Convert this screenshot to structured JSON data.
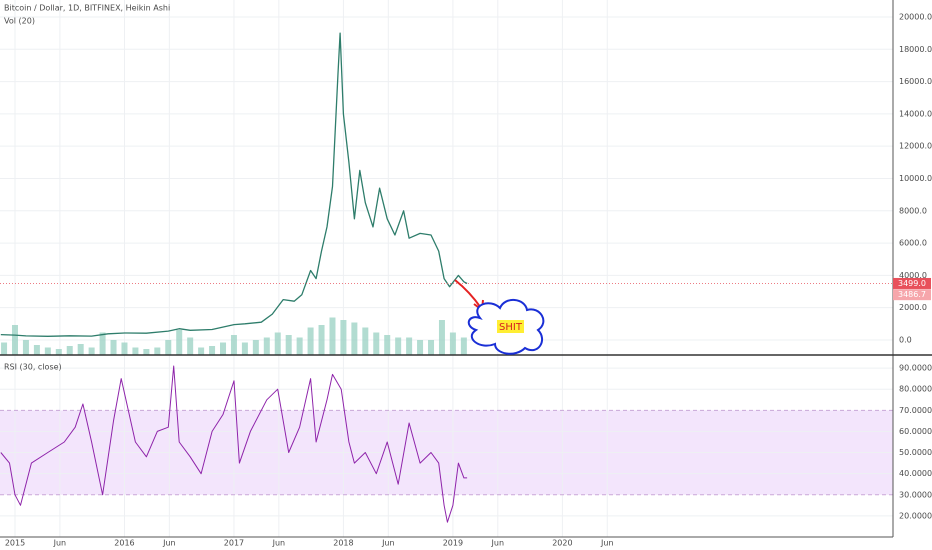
{
  "chart_data": [
    {
      "type": "line",
      "title": "Bitcoin / Dollar, 1D, BITFINEX, Heikin Ashi",
      "x": [
        2014.87,
        2015.0,
        2015.1,
        2015.3,
        2015.5,
        2015.7,
        2015.85,
        2016.0,
        2016.2,
        2016.4,
        2016.5,
        2016.6,
        2016.8,
        2017.0,
        2017.1,
        2017.25,
        2017.35,
        2017.45,
        2017.55,
        2017.62,
        2017.7,
        2017.75,
        2017.8,
        2017.85,
        2017.9,
        2017.95,
        2017.97,
        2018.0,
        2018.05,
        2018.1,
        2018.15,
        2018.2,
        2018.27,
        2018.33,
        2018.4,
        2018.47,
        2018.55,
        2018.6,
        2018.7,
        2018.8,
        2018.87,
        2018.92,
        2018.97,
        2019.05,
        2019.1,
        2019.13
      ],
      "values": [
        330,
        300,
        250,
        230,
        260,
        240,
        380,
        430,
        420,
        550,
        700,
        600,
        650,
        950,
        1000,
        1100,
        1600,
        2500,
        2400,
        2800,
        4300,
        3800,
        5500,
        7000,
        9500,
        16500,
        19000,
        14000,
        11000,
        7500,
        10500,
        8500,
        7000,
        9400,
        7500,
        6500,
        8000,
        6300,
        6600,
        6500,
        5500,
        3800,
        3300,
        4000,
        3600,
        3500
      ],
      "color": "#2e7d6b",
      "xlim": [
        2014.863,
        2023.02
      ],
      "ylim": [
        -930,
        21050
      ],
      "yticks": [
        {
          "value": 0,
          "label": "0.0"
        },
        {
          "value": 2000,
          "label": "2000.0"
        },
        {
          "value": 4000,
          "label": "4000.0"
        },
        {
          "value": 6000,
          "label": "6000.0"
        },
        {
          "value": 8000,
          "label": "8000.0"
        },
        {
          "value": 10000,
          "label": "10000.0"
        },
        {
          "value": 12000,
          "label": "12000.0"
        },
        {
          "value": 14000,
          "label": "14000.0"
        },
        {
          "value": 16000,
          "label": "16000.0"
        },
        {
          "value": 18000,
          "label": "18000.0"
        },
        {
          "value": 20000,
          "label": "20000.0"
        }
      ],
      "grid": true,
      "price_labels": [
        {
          "value": 3499,
          "label": "3499.0"
        },
        {
          "value": 3486.7,
          "label": "3486.7"
        }
      ],
      "volume": {
        "name": "Vol (20)",
        "x": [
          2014.9,
          2015.0,
          2015.1,
          2015.2,
          2015.3,
          2015.4,
          2015.5,
          2015.6,
          2015.7,
          2015.8,
          2015.9,
          2016.0,
          2016.1,
          2016.2,
          2016.3,
          2016.4,
          2016.5,
          2016.6,
          2016.7,
          2016.8,
          2016.9,
          2017.0,
          2017.1,
          2017.2,
          2017.3,
          2017.4,
          2017.5,
          2017.6,
          2017.7,
          2017.8,
          2017.9,
          2018.0,
          2018.1,
          2018.2,
          2018.3,
          2018.4,
          2018.5,
          2018.6,
          2018.7,
          2018.8,
          2018.9,
          2019.0,
          2019.1
        ],
        "values": [
          25,
          60,
          30,
          20,
          15,
          12,
          18,
          22,
          15,
          45,
          30,
          25,
          15,
          12,
          15,
          30,
          50,
          35,
          15,
          18,
          25,
          40,
          25,
          30,
          35,
          45,
          40,
          35,
          55,
          60,
          75,
          70,
          65,
          55,
          45,
          40,
          35,
          35,
          30,
          30,
          70,
          45,
          35
        ],
        "color": "#9fd3c5",
        "vlim": [
          0,
          100
        ]
      },
      "annotation": "SHIT"
    },
    {
      "type": "line",
      "title": "RSI (30, close)",
      "x": [
        2014.87,
        2014.95,
        2015.0,
        2015.05,
        2015.15,
        2015.3,
        2015.45,
        2015.55,
        2015.62,
        2015.7,
        2015.8,
        2015.9,
        2015.97,
        2016.1,
        2016.2,
        2016.3,
        2016.4,
        2016.45,
        2016.5,
        2016.6,
        2016.7,
        2016.8,
        2016.9,
        2017.0,
        2017.05,
        2017.15,
        2017.3,
        2017.4,
        2017.5,
        2017.6,
        2017.7,
        2017.75,
        2017.85,
        2017.9,
        2017.98,
        2018.05,
        2018.1,
        2018.2,
        2018.3,
        2018.4,
        2018.5,
        2018.6,
        2018.7,
        2018.8,
        2018.87,
        2018.92,
        2018.95,
        2019.0,
        2019.05,
        2019.1,
        2019.13
      ],
      "values": [
        50,
        45,
        30,
        25,
        45,
        50,
        55,
        62,
        73,
        55,
        30,
        65,
        85,
        55,
        48,
        60,
        62,
        91,
        55,
        48,
        40,
        60,
        68,
        84,
        45,
        60,
        75,
        80,
        50,
        62,
        85,
        55,
        75,
        87,
        80,
        55,
        45,
        50,
        40,
        55,
        35,
        64,
        45,
        50,
        45,
        25,
        17,
        25,
        45,
        38,
        38
      ],
      "color": "#8e24aa",
      "xlim": [
        2014.863,
        2023.02
      ],
      "ylim": [
        10,
        96.2
      ],
      "yticks": [
        {
          "value": 20,
          "label": "20.0000"
        },
        {
          "value": 30,
          "label": "30.0000"
        },
        {
          "value": 40,
          "label": "40.0000"
        },
        {
          "value": 50,
          "label": "50.0000"
        },
        {
          "value": 60,
          "label": "60.0000"
        },
        {
          "value": 70,
          "label": "70.0000"
        },
        {
          "value": 80,
          "label": "80.0000"
        },
        {
          "value": 90,
          "label": "90.0000"
        }
      ],
      "band": [
        30,
        70
      ],
      "band_color": "#f3e5fc",
      "xticks": [
        {
          "value": 2015,
          "label": "2015"
        },
        {
          "value": 2015.41,
          "label": "Jun"
        },
        {
          "value": 2016,
          "label": "2016"
        },
        {
          "value": 2016.41,
          "label": "Jun"
        },
        {
          "value": 2017,
          "label": "2017"
        },
        {
          "value": 2017.41,
          "label": "Jun"
        },
        {
          "value": 2018,
          "label": "2018"
        },
        {
          "value": 2018.41,
          "label": "Jun"
        },
        {
          "value": 2019,
          "label": "2019"
        },
        {
          "value": 2019.41,
          "label": "Jun"
        },
        {
          "value": 2020,
          "label": "2020"
        },
        {
          "value": 2020.41,
          "label": "Jun"
        }
      ]
    }
  ]
}
